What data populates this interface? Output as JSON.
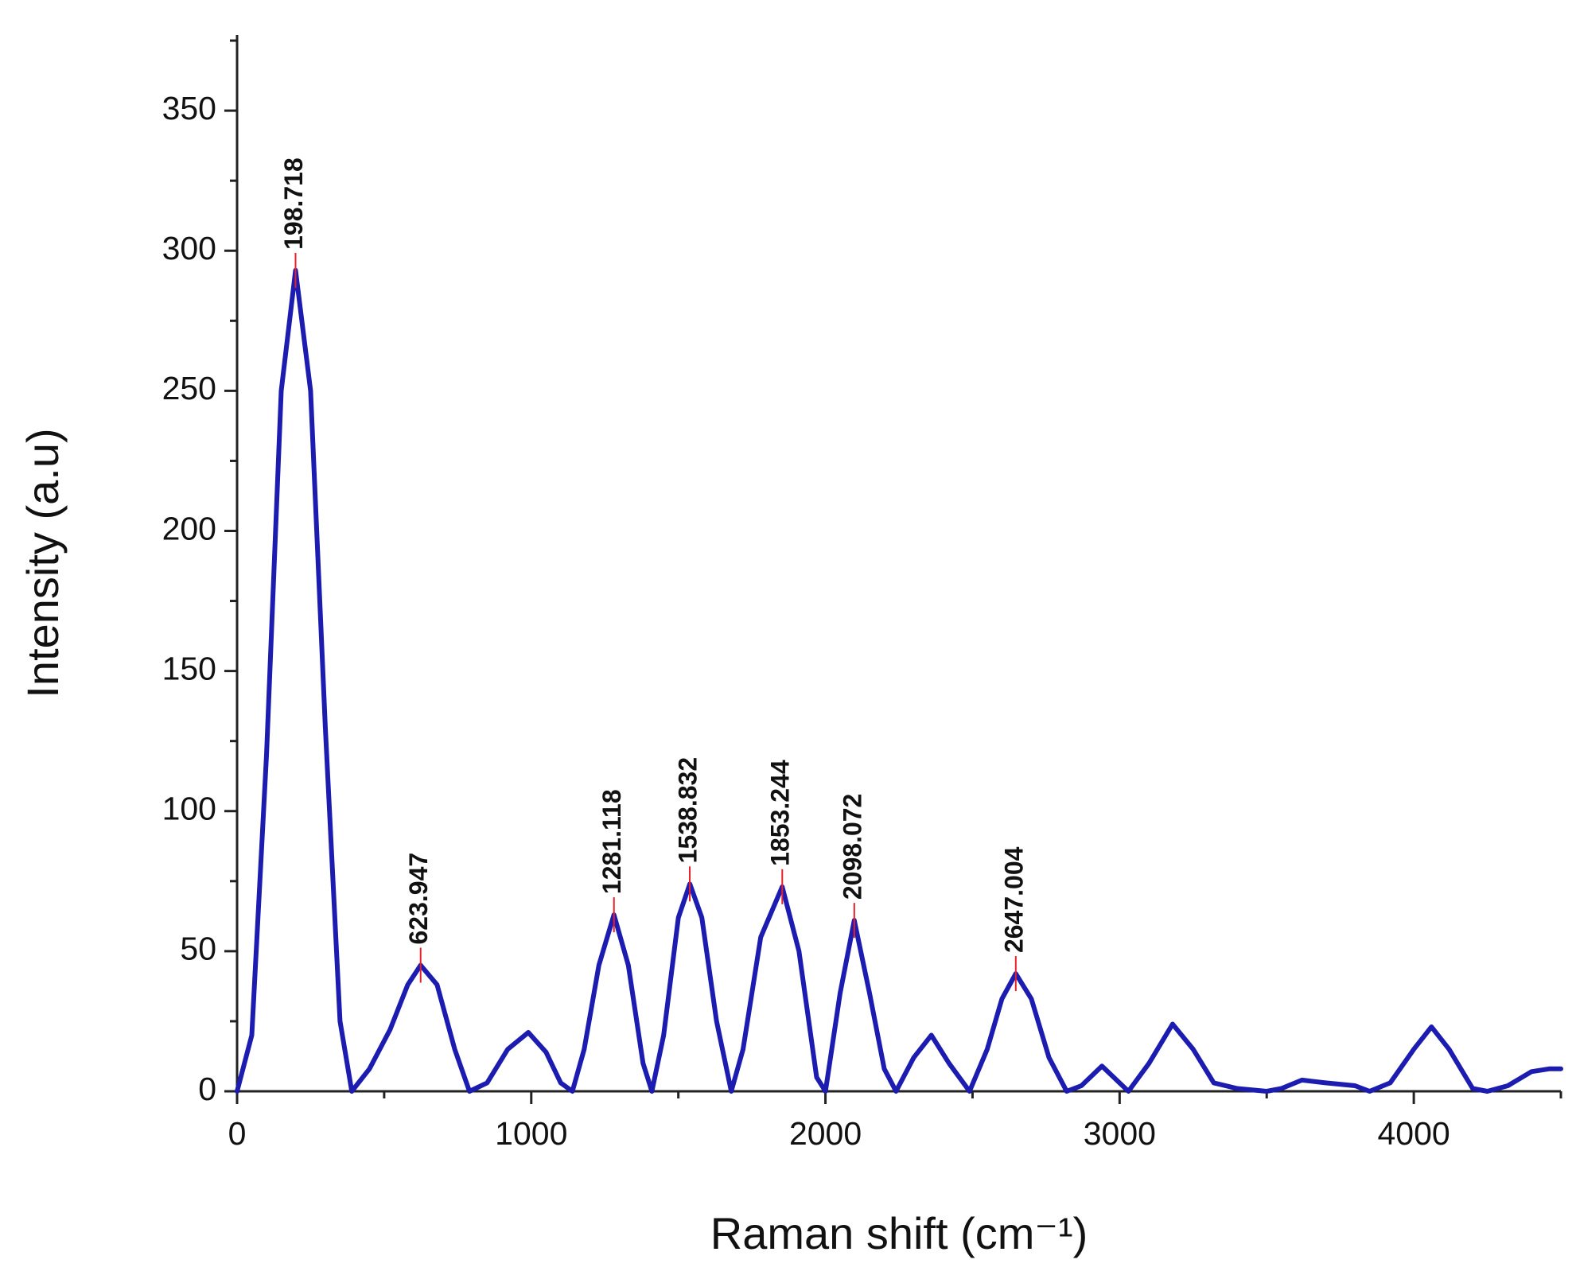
{
  "chart_data": {
    "type": "line",
    "xlabel": "Raman shift (cm⁻¹)",
    "ylabel": "Intensity (a.u)",
    "xlim": [
      0,
      4500
    ],
    "ylim": [
      0,
      377
    ],
    "xticks": [
      0,
      1000,
      2000,
      3000,
      4000
    ],
    "yticks": [
      0,
      50,
      100,
      150,
      200,
      250,
      300,
      350
    ],
    "xminorticks": [
      500,
      1500,
      2500,
      3500,
      4500
    ],
    "yminorticks": [
      25,
      75,
      125,
      175,
      225,
      275,
      325,
      375
    ],
    "series": [
      {
        "color": "#1c1cb0",
        "x": [
          0,
          50,
          100,
          150,
          198.7,
          250,
          300,
          350,
          390,
          450,
          520,
          580,
          624,
          680,
          740,
          790,
          850,
          920,
          990,
          1050,
          1100,
          1140,
          1180,
          1230,
          1281,
          1330,
          1380,
          1410,
          1450,
          1500,
          1539,
          1580,
          1630,
          1680,
          1720,
          1780,
          1853,
          1910,
          1970,
          2000,
          2050,
          2098,
          2150,
          2200,
          2240,
          2300,
          2360,
          2420,
          2490,
          2550,
          2600,
          2647,
          2700,
          2760,
          2820,
          2870,
          2940,
          2990,
          3030,
          3100,
          3180,
          3250,
          3320,
          3400,
          3500,
          3550,
          3620,
          3700,
          3800,
          3850,
          3920,
          4000,
          4060,
          4120,
          4200,
          4250,
          4320,
          4400,
          4460,
          4500
        ],
        "values": [
          0,
          20,
          120,
          250,
          293,
          250,
          130,
          25,
          0,
          8,
          22,
          38,
          45,
          38,
          15,
          0,
          3,
          15,
          21,
          14,
          3,
          0,
          15,
          45,
          63,
          45,
          10,
          0,
          20,
          62,
          74,
          62,
          25,
          0,
          15,
          55,
          73,
          50,
          5,
          0,
          35,
          61,
          35,
          8,
          0,
          12,
          20,
          10,
          0,
          15,
          33,
          42,
          33,
          12,
          0,
          2,
          9,
          4,
          0,
          10,
          24,
          15,
          3,
          1,
          0,
          1,
          4,
          3,
          2,
          0,
          3,
          15,
          23,
          15,
          1,
          0,
          2,
          7,
          8,
          8
        ]
      }
    ],
    "peaks": [
      {
        "x": 198.718,
        "y": 293
      },
      {
        "x": 623.947,
        "y": 45
      },
      {
        "x": 1281.118,
        "y": 63
      },
      {
        "x": 1538.832,
        "y": 74
      },
      {
        "x": 1853.244,
        "y": 73
      },
      {
        "x": 2098.072,
        "y": 61
      },
      {
        "x": 2647.004,
        "y": 42
      }
    ],
    "peak_color": "#e8202a"
  }
}
